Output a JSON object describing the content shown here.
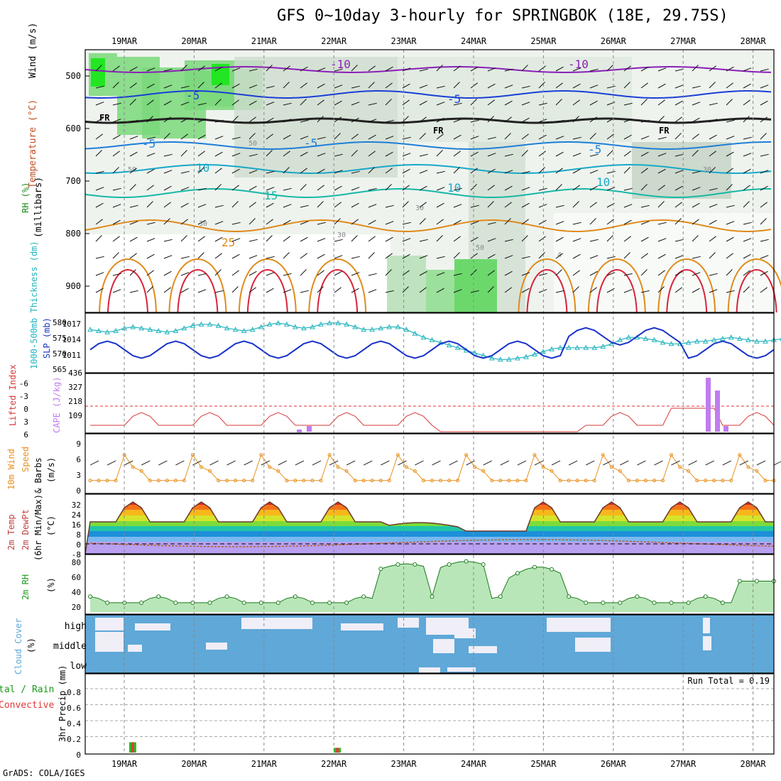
{
  "title": "GFS 0~10day 3-hourly for SPRINGBOK (18E, 29.75S)",
  "credit": "GrADS: COLA/IGES",
  "colors": {
    "rh_green": "#2fc42f",
    "temp_purple": "#8a1fb8",
    "temp_blue": "#1a3fd6",
    "temp_teal": "#17b8a6",
    "temp_orange": "#e08a1a",
    "temp_red": "#d8243a",
    "thickness": "#22b4bd",
    "slp": "#1a33c9",
    "lifted": "#d63a3a",
    "cape": "#c07cf0",
    "wind": "#e8901e",
    "rh2m": "#1fcf1f",
    "cloud": "#5fa8d8",
    "rain": "#22c022",
    "convective": "#e23a3a"
  },
  "chart_data": {
    "type": "line",
    "dates": [
      "19MAR",
      "20MAR",
      "21MAR",
      "22MAR",
      "23MAR",
      "24MAR",
      "25MAR",
      "26MAR",
      "27MAR",
      "28MAR"
    ],
    "panels": {
      "upper_air": {
        "ylabel_rh": "RH (%)",
        "ylabel_temp": "Temperature (°C)",
        "ylabel_wind": "Wind (m/s)",
        "ylabel_mb": "(millibars)",
        "ylabel_mb_text": "(millibars)",
        "y_ticks": [
          "500",
          "600",
          "700",
          "800",
          "900"
        ],
        "contour_labels": [
          "-10",
          "-10",
          "-5",
          "-5",
          "FR",
          "FR",
          "FR",
          "-5",
          "-5",
          "-5",
          "10",
          "10",
          "10",
          "15",
          "25",
          "50",
          "50",
          "30",
          "30",
          "30",
          "50",
          "30",
          "4"
        ]
      },
      "thickness_slp": {
        "ylabel_thickness": "1000-500mb Thickness (dm)",
        "ylabel_slp": "SLP (mb)",
        "thickness_ticks": [
          "580",
          "575",
          "570",
          "565"
        ],
        "slp_ticks": [
          "1017",
          "1014",
          "1011"
        ],
        "thickness_dm": [
          577.5,
          577,
          576.5,
          577,
          578,
          578.5,
          578,
          577.5,
          577,
          576.5,
          577,
          578,
          579,
          579.5,
          579.5,
          579,
          578,
          577.5,
          577,
          577.5,
          578.5,
          579.5,
          580,
          579.5,
          578.5,
          578,
          578.5,
          579.5,
          580,
          580,
          579.5,
          578.5,
          577.5,
          577.5,
          578,
          578.5,
          578.5,
          577.5,
          576,
          574.5,
          573.5,
          572.5,
          571.5,
          570.5,
          569.5,
          568.5,
          567.5,
          566.5,
          566,
          566,
          566.5,
          567,
          568,
          569,
          570,
          570.5,
          570.5,
          570.5,
          570.5,
          570.5,
          571,
          572,
          573.5,
          574.5,
          574.5,
          574,
          573.5,
          572.5,
          572,
          572,
          572.5,
          573,
          573,
          573.5,
          574,
          574.5,
          574,
          573.5,
          573,
          573,
          573.5,
          574,
          574,
          573.5,
          573.5,
          573,
          573
        ]
      },
      "lifted_cape": {
        "ylabel_li": "Lifted Index",
        "ylabel_cape": "CAPE (J/kg)",
        "li_ticks": [
          "-6",
          "-3",
          "0",
          "3",
          "6"
        ],
        "cape_ticks": [
          "436",
          "327",
          "218",
          "109"
        ]
      },
      "wind10m": {
        "ylabel": "10m Wind Speed & Barbs (m/s)",
        "ylabel_l1": "10m Wind",
        "ylabel_l2": "Speed",
        "ylabel_l3": "& Barbs",
        "ylabel_l4": "(m/s)",
        "y_ticks": [
          "9",
          "6",
          "3",
          "0"
        ]
      },
      "temp2m": {
        "ylabel_l1": "2m Temp",
        "ylabel_l2": "2m DewPt",
        "ylabel_l3": "(6hr Min/Max)",
        "ylabel_l4": "(°C)",
        "y_ticks": [
          "32",
          "24",
          "16",
          "8",
          "0",
          "-8"
        ]
      },
      "rh2m": {
        "ylabel_l1": "2m RH",
        "ylabel_l2": "(%)",
        "y_ticks": [
          "80",
          "60",
          "40",
          "20"
        ]
      },
      "cloud": {
        "ylabel_l1": "Cloud Cover",
        "ylabel_l2": "(%)",
        "levels": [
          "high",
          "middle",
          "low"
        ]
      },
      "precip": {
        "ylabel_l1": "tal / Rain",
        "ylabel_l2": "Convective",
        "ylabel_l3": "3hr Precip (mm)",
        "y_ticks": [
          "0.8",
          "0.6",
          "0.4",
          "0.2",
          "0"
        ],
        "y_ticks_top": "0.8",
        "run_total": "Run Total = 0.19",
        "bars": [
          {
            "date_index": 0.05,
            "value": 0.13
          },
          {
            "date_index": 2.98,
            "value": 0.06
          }
        ]
      }
    }
  }
}
